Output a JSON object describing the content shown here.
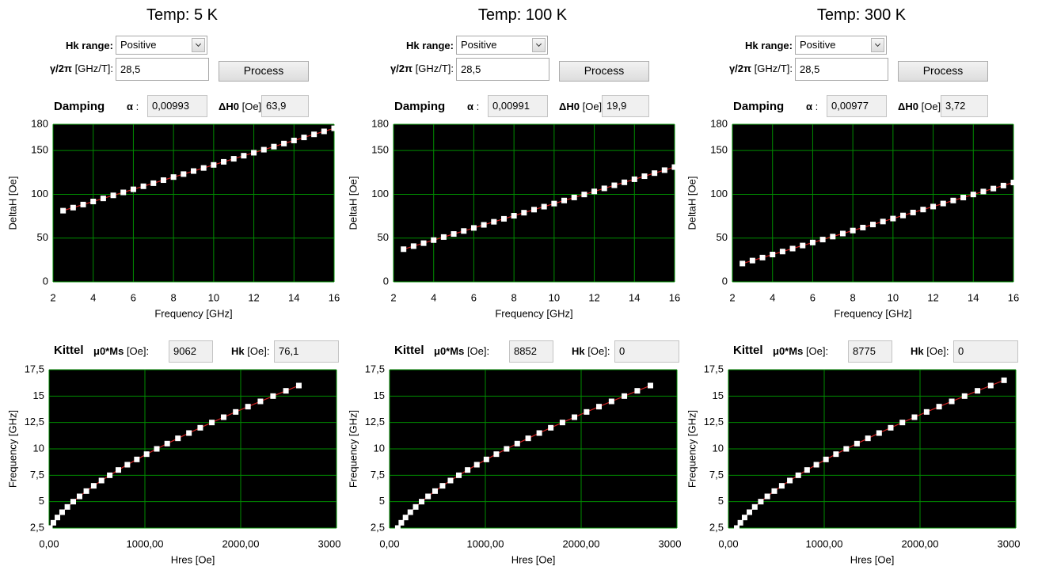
{
  "panels": [
    {
      "title": "Temp: 5 K",
      "hk_range_label": "Hk range:",
      "hk_range_value": "Positive",
      "gamma_name": "γ/2π",
      "gamma_unit": "[GHz/T]:",
      "gamma_value": "28,5",
      "process_button": "Process",
      "damping_label": "Damping",
      "alpha_name": "α",
      "alpha_colon": ":",
      "alpha_value": "0,00993",
      "dh0_name": "ΔH0",
      "dh0_unit": "[Oe]:",
      "dh0_value": "63,9",
      "kittel_label": "Kittel",
      "ms_name": "μ0*Ms",
      "ms_unit": "[Oe]:",
      "ms_value": "9062",
      "hk_name": "Hk",
      "hk_unit": "[Oe]:",
      "hk_value": "76,1"
    },
    {
      "title": "Temp: 100 K",
      "hk_range_label": "Hk range:",
      "hk_range_value": "Positive",
      "gamma_name": "γ/2π",
      "gamma_unit": "[GHz/T]:",
      "gamma_value": "28,5",
      "process_button": "Process",
      "damping_label": "Damping",
      "alpha_name": "α",
      "alpha_colon": ":",
      "alpha_value": "0,00991",
      "dh0_name": "ΔH0",
      "dh0_unit": "[Oe]:",
      "dh0_value": "19,9",
      "kittel_label": "Kittel",
      "ms_name": "μ0*Ms",
      "ms_unit": "[Oe]:",
      "ms_value": "8852",
      "hk_name": "Hk",
      "hk_unit": "[Oe]:",
      "hk_value": "0"
    },
    {
      "title": "Temp: 300 K",
      "hk_range_label": "Hk range:",
      "hk_range_value": "Positive",
      "gamma_name": "γ/2π",
      "gamma_unit": "[GHz/T]:",
      "gamma_value": "28,5",
      "process_button": "Process",
      "damping_label": "Damping",
      "alpha_name": "α",
      "alpha_colon": ":",
      "alpha_value": "0,00977",
      "dh0_name": "ΔH0",
      "dh0_unit": "[Oe]:",
      "dh0_value": "3,72",
      "kittel_label": "Kittel",
      "ms_name": "μ0*Ms",
      "ms_unit": "[Oe]:",
      "ms_value": "8775",
      "hk_name": "Hk",
      "hk_unit": "[Oe]:",
      "hk_value": "0"
    }
  ],
  "chart_data": [
    {
      "type": "scatter",
      "xlabel": "Frequency [GHz]",
      "ylabel": "DeltaH [Oe]",
      "xlim": [
        2,
        16
      ],
      "ylim": [
        0,
        180
      ],
      "xticks": [
        2,
        4,
        6,
        8,
        10,
        12,
        14,
        16
      ],
      "yticks": [
        0,
        50,
        100,
        150,
        180
      ],
      "grid": true,
      "grid_color": "#008c00",
      "background": "#000000",
      "color": "#ffffff",
      "line_color": "#d02020",
      "x": [
        2.5,
        3,
        3.5,
        4,
        4.5,
        5,
        5.5,
        6,
        6.5,
        7,
        7.5,
        8,
        8.5,
        9,
        9.5,
        10,
        10.5,
        11,
        11.5,
        12,
        12.5,
        13,
        13.5,
        14,
        14.5,
        15,
        15.5,
        16
      ],
      "values": [
        81.3,
        84.8,
        88.3,
        91.8,
        95.3,
        98.8,
        102.2,
        105.7,
        109.2,
        112.7,
        116.2,
        119.7,
        123.1,
        126.6,
        130.1,
        133.6,
        137.1,
        140.6,
        144.1,
        147.5,
        151.0,
        154.5,
        158.0,
        161.5,
        165.0,
        168.5,
        171.9,
        175.4
      ]
    },
    {
      "type": "scatter",
      "xlabel": "Hres [Oe]",
      "ylabel": "Frequency [GHz]",
      "xlim": [
        0,
        3000
      ],
      "ylim": [
        2.5,
        17.5
      ],
      "xticks": [
        {
          "value": 0,
          "label": "0,00"
        },
        {
          "value": 1000,
          "label": "1000,00"
        },
        {
          "value": 2000,
          "label": "2000,00"
        },
        {
          "value": 3000,
          "label": "3000,00"
        }
      ],
      "yticks": [
        {
          "value": 2.5,
          "label": "2,5"
        },
        5,
        {
          "value": 7.5,
          "label": "7,5"
        },
        10,
        {
          "value": 12.5,
          "label": "12,5"
        },
        15,
        {
          "value": 17.5,
          "label": "17,5"
        }
      ],
      "grid": true,
      "grid_color": "#008c00",
      "background": "#000000",
      "color": "#ffffff",
      "line_color": "#d02020",
      "x": [
        8,
        45,
        87,
        136,
        191,
        252,
        318,
        389,
        466,
        547,
        633,
        723,
        817,
        916,
        1018,
        1124,
        1233,
        1345,
        1460,
        1578,
        1699,
        1822,
        1948,
        2076,
        2206,
        2338,
        2472,
        2607
      ],
      "values": [
        2.5,
        3,
        3.5,
        4,
        4.5,
        5,
        5.5,
        6,
        6.5,
        7,
        7.5,
        8,
        8.5,
        9,
        9.5,
        10,
        10.5,
        11,
        11.5,
        12,
        12.5,
        13,
        13.5,
        14,
        14.5,
        15,
        15.5,
        16
      ]
    },
    {
      "type": "scatter",
      "xlabel": "Frequency [GHz]",
      "ylabel": "DeltaH [Oe]",
      "xlim": [
        2,
        16
      ],
      "ylim": [
        0,
        180
      ],
      "xticks": [
        2,
        4,
        6,
        8,
        10,
        12,
        14,
        16
      ],
      "yticks": [
        0,
        50,
        100,
        150,
        180
      ],
      "grid": true,
      "grid_color": "#008c00",
      "background": "#000000",
      "color": "#ffffff",
      "line_color": "#d02020",
      "x": [
        2.5,
        3,
        3.5,
        4,
        4.5,
        5,
        5.5,
        6,
        6.5,
        7,
        7.5,
        8,
        8.5,
        9,
        9.5,
        10,
        10.5,
        11,
        11.5,
        12,
        12.5,
        13,
        13.5,
        14,
        14.5,
        15,
        15.5,
        16
      ],
      "values": [
        37.3,
        40.8,
        44.2,
        47.7,
        51.2,
        54.7,
        58.1,
        61.6,
        65.1,
        68.6,
        72.0,
        75.5,
        79.0,
        82.5,
        85.9,
        89.4,
        92.9,
        96.4,
        99.8,
        103.3,
        106.8,
        110.3,
        113.7,
        117.2,
        120.7,
        124.2,
        127.6,
        131.1
      ]
    },
    {
      "type": "scatter",
      "xlabel": "Hres [Oe]",
      "ylabel": "Frequency [GHz]",
      "xlim": [
        0,
        3000
      ],
      "ylim": [
        2.5,
        17.5
      ],
      "xticks": [
        {
          "value": 0,
          "label": "0,00"
        },
        {
          "value": 1000,
          "label": "1000,00"
        },
        {
          "value": 2000,
          "label": "2000,00"
        },
        {
          "value": 3000,
          "label": "3000,00"
        }
      ],
      "yticks": [
        {
          "value": 2.5,
          "label": "2,5"
        },
        5,
        {
          "value": 7.5,
          "label": "7,5"
        },
        10,
        {
          "value": 12.5,
          "label": "12,5"
        },
        15,
        {
          "value": 17.5,
          "label": "17,5"
        }
      ],
      "grid": true,
      "grid_color": "#008c00",
      "background": "#000000",
      "color": "#ffffff",
      "line_color": "#d02020",
      "x": [
        86,
        123,
        167,
        217,
        273,
        335,
        402,
        475,
        553,
        636,
        723,
        815,
        911,
        1011,
        1115,
        1222,
        1333,
        1447,
        1563,
        1683,
        1805,
        1930,
        2057,
        2186,
        2317,
        2451,
        2586,
        2723
      ],
      "values": [
        2.5,
        3,
        3.5,
        4,
        4.5,
        5,
        5.5,
        6,
        6.5,
        7,
        7.5,
        8,
        8.5,
        9,
        9.5,
        10,
        10.5,
        11,
        11.5,
        12,
        12.5,
        13,
        13.5,
        14,
        14.5,
        15,
        15.5,
        16
      ]
    },
    {
      "type": "scatter",
      "xlabel": "Frequency [GHz]",
      "ylabel": "DeltaH [Oe]",
      "xlim": [
        2,
        16
      ],
      "ylim": [
        0,
        180
      ],
      "xticks": [
        2,
        4,
        6,
        8,
        10,
        12,
        14,
        16
      ],
      "yticks": [
        0,
        50,
        100,
        150,
        180
      ],
      "grid": true,
      "grid_color": "#008c00",
      "background": "#000000",
      "color": "#ffffff",
      "line_color": "#d02020",
      "x": [
        2.5,
        3,
        3.5,
        4,
        4.5,
        5,
        5.5,
        6,
        6.5,
        7,
        7.5,
        8,
        8.5,
        9,
        9.5,
        10,
        10.5,
        11,
        11.5,
        12,
        12.5,
        13,
        13.5,
        14,
        14.5,
        15,
        15.5,
        16
      ],
      "values": [
        20.9,
        24.3,
        27.7,
        31.2,
        34.6,
        38.0,
        41.5,
        44.9,
        48.3,
        51.7,
        55.2,
        58.6,
        62.0,
        65.5,
        68.9,
        72.3,
        75.8,
        79.2,
        82.6,
        86.0,
        89.5,
        92.9,
        96.3,
        99.8,
        103.2,
        106.6,
        110.0,
        113.5
      ]
    },
    {
      "type": "scatter",
      "xlabel": "Hres [Oe]",
      "ylabel": "Frequency [GHz]",
      "xlim": [
        0,
        3000
      ],
      "ylim": [
        2.5,
        17.5
      ],
      "xticks": [
        {
          "value": 0,
          "label": "0,00"
        },
        {
          "value": 1000,
          "label": "1000,00"
        },
        {
          "value": 2000,
          "label": "2000,00"
        },
        {
          "value": 3000,
          "label": "3000,00"
        }
      ],
      "yticks": [
        {
          "value": 2.5,
          "label": "2,5"
        },
        5,
        {
          "value": 7.5,
          "label": "7,5"
        },
        10,
        {
          "value": 12.5,
          "label": "12,5"
        },
        15,
        {
          "value": 17.5,
          "label": "17,5"
        }
      ],
      "grid": true,
      "grid_color": "#008c00",
      "background": "#000000",
      "color": "#ffffff",
      "line_color": "#d02020",
      "x": [
        87,
        125,
        169,
        219,
        275,
        338,
        406,
        479,
        557,
        641,
        729,
        821,
        918,
        1018,
        1123,
        1230,
        1342,
        1456,
        1573,
        1694,
        1816,
        1942,
        2069,
        2199,
        2331,
        2465,
        2600,
        2738,
        2877
      ],
      "values": [
        2.5,
        3,
        3.5,
        4,
        4.5,
        5,
        5.5,
        6,
        6.5,
        7,
        7.5,
        8,
        8.5,
        9,
        9.5,
        10,
        10.5,
        11,
        11.5,
        12,
        12.5,
        13,
        13.5,
        14,
        14.5,
        15,
        15.5,
        16,
        16.5
      ]
    }
  ]
}
